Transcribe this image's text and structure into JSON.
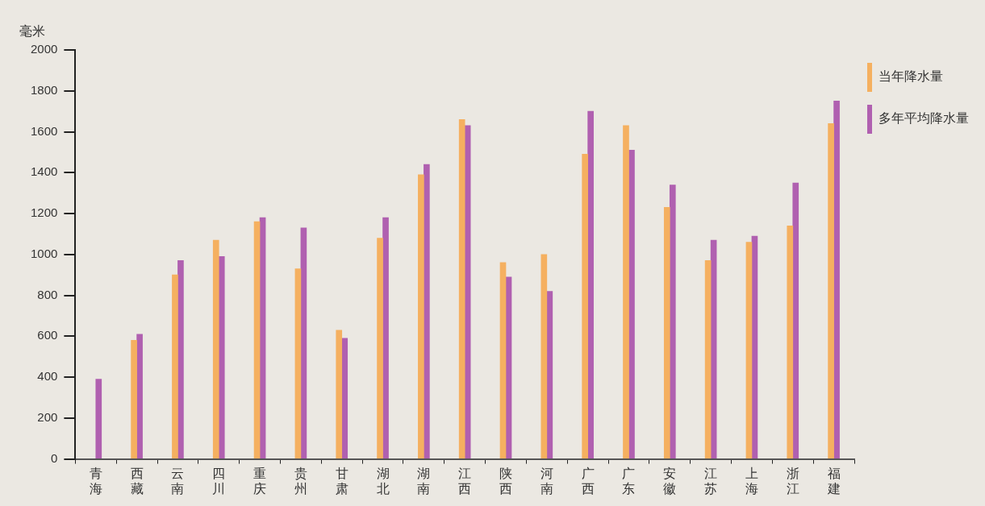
{
  "chart_data": {
    "type": "bar",
    "ylabel": "毫米",
    "categories": [
      "青海",
      "西藏",
      "云南",
      "四川",
      "重庆",
      "贵州",
      "甘肃",
      "湖北",
      "湖南",
      "江西",
      "陕西",
      "河南",
      "广西",
      "广东",
      "安徽",
      "江苏",
      "上海",
      "浙江",
      "福建"
    ],
    "series": [
      {
        "name": "当年降水量",
        "color": "#f5b060",
        "values": [
          null,
          580,
          900,
          1070,
          1160,
          930,
          630,
          1080,
          1390,
          1660,
          960,
          1000,
          1490,
          1630,
          1230,
          970,
          1060,
          1140,
          1640
        ]
      },
      {
        "name": "多年平均降水量",
        "color": "#b060b0",
        "values": [
          390,
          610,
          970,
          990,
          1180,
          1130,
          590,
          1180,
          1440,
          1630,
          890,
          820,
          1700,
          1510,
          1340,
          1070,
          1090,
          1350,
          1750
        ]
      }
    ],
    "ylim": [
      0,
      2000
    ],
    "yticks": [
      0,
      200,
      400,
      600,
      800,
      1000,
      1200,
      1400,
      1600,
      1800,
      2000
    ],
    "grid": false,
    "legend": "right"
  }
}
